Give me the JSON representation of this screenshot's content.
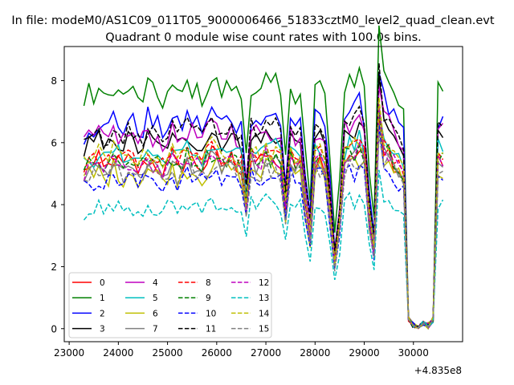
{
  "suptitle": "In file: modeM0/AS1C09_011T05_9000006466_51833cztM0_level2_quad_clean.evt",
  "chart_data": {
    "type": "line",
    "title": "Quadrant 0 module wise count rates with 100.0s bins.",
    "xlabel": "",
    "ylabel": "",
    "x_offset_label": "+4.835e8",
    "xlim": [
      22900,
      31000
    ],
    "ylim": [
      -0.42,
      9.1
    ],
    "x_ticks": [
      23000,
      24000,
      25000,
      26000,
      27000,
      28000,
      29000,
      30000
    ],
    "x_tick_labels": [
      "23000",
      "24000",
      "25000",
      "26000",
      "27000",
      "28000",
      "29000",
      "30000"
    ],
    "y_ticks": [
      0,
      2,
      4,
      6,
      8
    ],
    "y_tick_labels": [
      "0",
      "2",
      "4",
      "6",
      "8"
    ],
    "legend_position": "lower-left",
    "legend_columns": 4,
    "x_start": 23300,
    "x_step": 100,
    "points": 74,
    "baseline": [
      5.3,
      5.6,
      5.5,
      5.7,
      5.4,
      5.5,
      5.8,
      5.6,
      5.5,
      5.7,
      5.6,
      5.4,
      5.5,
      5.8,
      5.6,
      5.5,
      5.4,
      5.6,
      5.7,
      5.5,
      5.6,
      5.8,
      5.7,
      5.6,
      5.5,
      5.7,
      5.9,
      5.8,
      5.6,
      5.7,
      5.8,
      5.6,
      5.5,
      4.2,
      5.8,
      5.7,
      5.6,
      5.9,
      5.7,
      5.8,
      5.5,
      4.0,
      5.8,
      5.6,
      5.7,
      4.3,
      3.0,
      5.7,
      5.8,
      5.6,
      4.0,
      2.2,
      3.5,
      5.8,
      6.0,
      5.9,
      6.1,
      5.8,
      3.8,
      2.6,
      7.3,
      6.2,
      6.0,
      5.7,
      5.5,
      5.2,
      0.3,
      0.1,
      0.0,
      0.2,
      0.1,
      0.3,
      5.8,
      5.7
    ],
    "series": [
      {
        "name": "0",
        "color": "#ff0000",
        "dash": "solid",
        "level": 5.3,
        "noise": 0.35
      },
      {
        "name": "1",
        "color": "#008000",
        "dash": "solid",
        "level": 7.6,
        "noise": 0.35
      },
      {
        "name": "2",
        "color": "#0000ff",
        "dash": "solid",
        "level": 6.6,
        "noise": 0.4
      },
      {
        "name": "3",
        "color": "#000000",
        "dash": "solid",
        "level": 6.0,
        "noise": 0.3
      },
      {
        "name": "4",
        "color": "#bf00bf",
        "dash": "solid",
        "level": 6.2,
        "noise": 0.35
      },
      {
        "name": "5",
        "color": "#00bfbf",
        "dash": "solid",
        "level": 5.6,
        "noise": 0.35
      },
      {
        "name": "6",
        "color": "#bfbf00",
        "dash": "solid",
        "level": 5.0,
        "noise": 0.35
      },
      {
        "name": "7",
        "color": "#808080",
        "dash": "solid",
        "level": 5.2,
        "noise": 0.3
      },
      {
        "name": "8",
        "color": "#ff0000",
        "dash": "dashed",
        "level": 5.5,
        "noise": 0.3
      },
      {
        "name": "9",
        "color": "#008000",
        "dash": "dashed",
        "level": 5.4,
        "noise": 0.3
      },
      {
        "name": "10",
        "color": "#0000ff",
        "dash": "dashed",
        "level": 4.8,
        "noise": 0.3
      },
      {
        "name": "11",
        "color": "#000000",
        "dash": "dashed",
        "level": 6.3,
        "noise": 0.3
      },
      {
        "name": "12",
        "color": "#bf00bf",
        "dash": "dashed",
        "level": 5.3,
        "noise": 0.3
      },
      {
        "name": "13",
        "color": "#00bfbf",
        "dash": "dashed",
        "level": 3.9,
        "noise": 0.25
      },
      {
        "name": "14",
        "color": "#bfbf00",
        "dash": "dashed",
        "level": 5.6,
        "noise": 0.3
      },
      {
        "name": "15",
        "color": "#808080",
        "dash": "dashed",
        "level": 5.0,
        "noise": 0.3
      }
    ]
  }
}
